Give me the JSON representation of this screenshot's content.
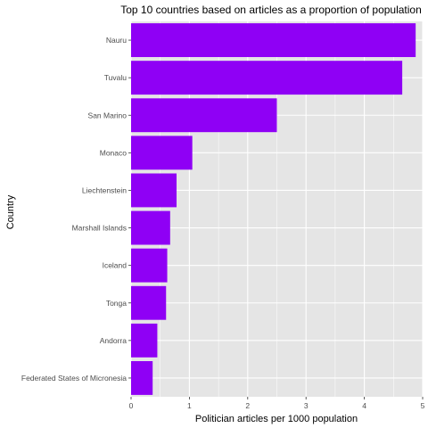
{
  "chart_data": {
    "type": "bar",
    "orientation": "horizontal",
    "title": "Top 10 countries based on articles as a proportion of population",
    "xlabel": "Politician articles per 1000 population",
    "ylabel": "Country",
    "categories": [
      "Nauru",
      "Tuvalu",
      "San Marino",
      "Monaco",
      "Liechtenstein",
      "Marshall Islands",
      "Iceland",
      "Tonga",
      "Andorra",
      "Federated States of Micronesia"
    ],
    "values": [
      4.88,
      4.65,
      2.5,
      1.05,
      0.78,
      0.67,
      0.62,
      0.6,
      0.45,
      0.37
    ],
    "xlim": [
      0,
      5
    ],
    "xticks": [
      0,
      1,
      2,
      3,
      4,
      5
    ],
    "bar_color": "#8f00f5",
    "panel_background": "#e5e5e5",
    "grid": true,
    "grid_color": "#ffffff",
    "legend": "none"
  }
}
